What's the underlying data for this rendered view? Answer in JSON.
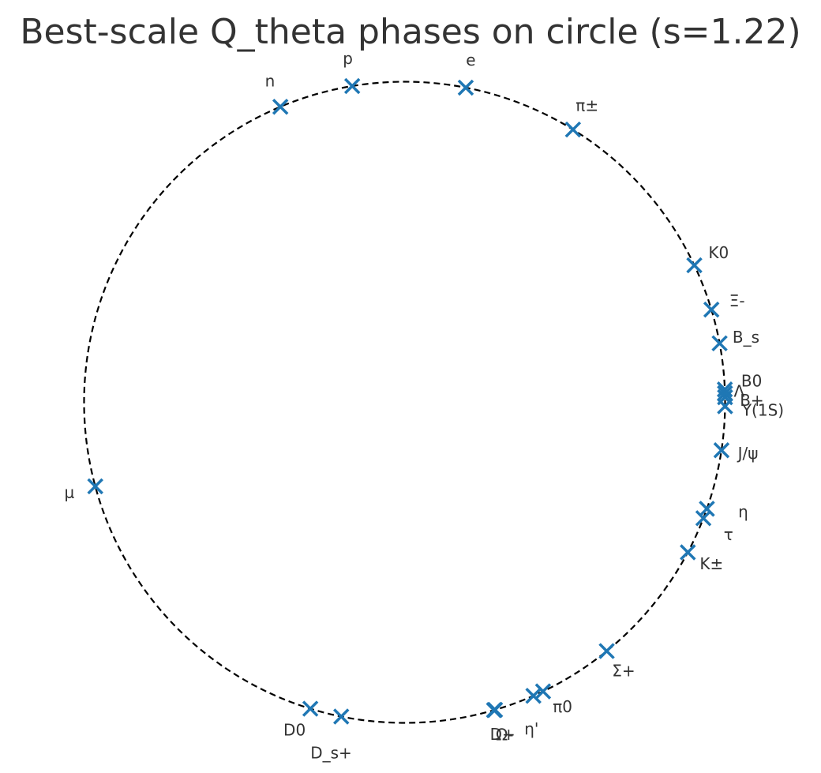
{
  "chart_data": {
    "type": "scatter",
    "title": "Best-scale Q_theta phases on circle (s=1.22)",
    "xlabel": "",
    "ylabel": "",
    "grid": false,
    "legend": "none",
    "marker": "x",
    "marker_color": "#1f77b4",
    "circle_style": "dashed",
    "circle_color": "#000000",
    "xlim": [
      -1.0,
      1.0
    ],
    "ylim": [
      -1.0,
      1.0
    ],
    "points": [
      {
        "label": "p",
        "angle_deg": 99.4
      },
      {
        "label": "e",
        "angle_deg": 79.0
      },
      {
        "label": "n",
        "angle_deg": 112.8
      },
      {
        "label": "π±",
        "angle_deg": 58.3
      },
      {
        "label": "K0",
        "angle_deg": 25.3
      },
      {
        "label": "Ξ-",
        "angle_deg": 16.8
      },
      {
        "label": "B_s",
        "angle_deg": 10.6
      },
      {
        "label": "B0",
        "angle_deg": 2.3
      },
      {
        "label": "B+",
        "angle_deg": 0.9
      },
      {
        "label": "Λ",
        "angle_deg": 1.6
      },
      {
        "label": "Υ(1S)",
        "angle_deg": -0.7
      },
      {
        "label": "J/ψ",
        "angle_deg": -8.6
      },
      {
        "label": "η",
        "angle_deg": -19.4
      },
      {
        "label": "τ",
        "angle_deg": -21.2
      },
      {
        "label": "K±",
        "angle_deg": -27.9
      },
      {
        "label": "μ",
        "angle_deg": 195.2
      },
      {
        "label": "Σ+",
        "angle_deg": -50.9
      },
      {
        "label": "π0",
        "angle_deg": -64.4
      },
      {
        "label": "η'",
        "angle_deg": -66.3
      },
      {
        "label": "D+",
        "angle_deg": -73.6
      },
      {
        "label": "Ω-",
        "angle_deg": -73.8
      },
      {
        "label": "D_s+",
        "angle_deg": -101.4
      },
      {
        "label": "D0",
        "angle_deg": -107.1
      }
    ]
  }
}
